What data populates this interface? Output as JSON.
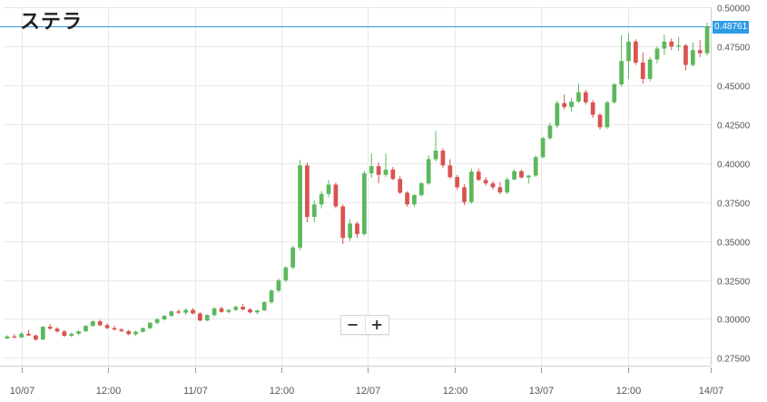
{
  "title": "ステラ",
  "zoom": {
    "minus_label": "−",
    "plus_label": "+"
  },
  "last_price_label": "0.48761",
  "colors": {
    "up": "#5cb85c",
    "down": "#d9534f",
    "grid": "#e8e8e8",
    "axis_text": "#555555",
    "price_line": "#2e9be5"
  },
  "chart_data": {
    "type": "candlestick",
    "title": "ステラ",
    "ylim": [
      0.27,
      0.5
    ],
    "yticks": [
      "0.27500",
      "0.30000",
      "0.32500",
      "0.35000",
      "0.37500",
      "0.40000",
      "0.42500",
      "0.45000",
      "0.47500",
      "0.50000"
    ],
    "ytick_values": [
      0.275,
      0.3,
      0.325,
      0.35,
      0.375,
      0.4,
      0.425,
      0.45,
      0.475,
      0.5
    ],
    "xlim": [
      0,
      98
    ],
    "xticks": [
      {
        "label": "10/07",
        "pos": 2.5
      },
      {
        "label": "12:00",
        "pos": 14.5
      },
      {
        "label": "11/07",
        "pos": 26.5
      },
      {
        "label": "12:00",
        "pos": 38.5
      },
      {
        "label": "12/07",
        "pos": 50.5
      },
      {
        "label": "12:00",
        "pos": 62.5
      },
      {
        "label": "13/07",
        "pos": 74.5
      },
      {
        "label": "12:00",
        "pos": 86.5
      },
      {
        "label": "14/07",
        "pos": 98
      }
    ],
    "last_price": 0.48761,
    "grid": true,
    "candles": [
      [
        0.2875,
        0.2895,
        0.287,
        0.2888
      ],
      [
        0.2888,
        0.2902,
        0.2875,
        0.2881
      ],
      [
        0.2881,
        0.2915,
        0.2877,
        0.2905
      ],
      [
        0.2905,
        0.293,
        0.289,
        0.2894
      ],
      [
        0.2894,
        0.29,
        0.286,
        0.2868
      ],
      [
        0.2868,
        0.2955,
        0.2865,
        0.295
      ],
      [
        0.295,
        0.2968,
        0.293,
        0.2938
      ],
      [
        0.2938,
        0.2948,
        0.2912,
        0.292
      ],
      [
        0.292,
        0.293,
        0.2885,
        0.2892
      ],
      [
        0.2892,
        0.2912,
        0.2883,
        0.2905
      ],
      [
        0.2905,
        0.2928,
        0.2895,
        0.2921
      ],
      [
        0.2921,
        0.2962,
        0.2915,
        0.2955
      ],
      [
        0.2955,
        0.299,
        0.295,
        0.2985
      ],
      [
        0.2985,
        0.2995,
        0.2952,
        0.296
      ],
      [
        0.296,
        0.2972,
        0.2935,
        0.2941
      ],
      [
        0.2941,
        0.2955,
        0.2925,
        0.2932
      ],
      [
        0.2932,
        0.2942,
        0.2915,
        0.2922
      ],
      [
        0.2922,
        0.293,
        0.2895,
        0.2902
      ],
      [
        0.2902,
        0.2925,
        0.289,
        0.2918
      ],
      [
        0.2918,
        0.2945,
        0.2912,
        0.2941
      ],
      [
        0.2941,
        0.298,
        0.2935,
        0.2975
      ],
      [
        0.2975,
        0.3005,
        0.2965,
        0.2998
      ],
      [
        0.2998,
        0.3025,
        0.299,
        0.302
      ],
      [
        0.302,
        0.3055,
        0.3012,
        0.3048
      ],
      [
        0.3048,
        0.3062,
        0.303,
        0.304
      ],
      [
        0.304,
        0.3068,
        0.3025,
        0.3058
      ],
      [
        0.3058,
        0.307,
        0.303,
        0.3035
      ],
      [
        0.3035,
        0.3045,
        0.2985,
        0.299
      ],
      [
        0.299,
        0.303,
        0.2985,
        0.3025
      ],
      [
        0.3025,
        0.3075,
        0.3015,
        0.3068
      ],
      [
        0.3068,
        0.308,
        0.304,
        0.3045
      ],
      [
        0.3045,
        0.3062,
        0.3035,
        0.3058
      ],
      [
        0.3058,
        0.3085,
        0.305,
        0.3078
      ],
      [
        0.3078,
        0.3095,
        0.3055,
        0.3061
      ],
      [
        0.3061,
        0.307,
        0.3035,
        0.3042
      ],
      [
        0.3042,
        0.306,
        0.303,
        0.3055
      ],
      [
        0.3055,
        0.3115,
        0.305,
        0.3108
      ],
      [
        0.3108,
        0.319,
        0.3098,
        0.3182
      ],
      [
        0.3182,
        0.326,
        0.317,
        0.3248
      ],
      [
        0.3248,
        0.334,
        0.3235,
        0.333
      ],
      [
        0.333,
        0.347,
        0.332,
        0.3458
      ],
      [
        0.3458,
        0.402,
        0.344,
        0.3985
      ],
      [
        0.3985,
        0.4005,
        0.362,
        0.3655
      ],
      [
        0.3655,
        0.376,
        0.362,
        0.3735
      ],
      [
        0.3735,
        0.382,
        0.371,
        0.3802
      ],
      [
        0.3802,
        0.389,
        0.378,
        0.3862
      ],
      [
        0.3862,
        0.3875,
        0.371,
        0.3722
      ],
      [
        0.3722,
        0.3735,
        0.348,
        0.352
      ],
      [
        0.352,
        0.364,
        0.35,
        0.3612
      ],
      [
        0.3612,
        0.3625,
        0.352,
        0.3545
      ],
      [
        0.3545,
        0.395,
        0.3535,
        0.3935
      ],
      [
        0.3935,
        0.406,
        0.3905,
        0.398
      ],
      [
        0.398,
        0.4005,
        0.387,
        0.3925
      ],
      [
        0.3925,
        0.406,
        0.391,
        0.3958
      ],
      [
        0.3958,
        0.3975,
        0.389,
        0.3898
      ],
      [
        0.3898,
        0.3915,
        0.38,
        0.381
      ],
      [
        0.381,
        0.382,
        0.372,
        0.3735
      ],
      [
        0.3735,
        0.38,
        0.372,
        0.3795
      ],
      [
        0.3795,
        0.388,
        0.3785,
        0.387
      ],
      [
        0.387,
        0.405,
        0.386,
        0.4025
      ],
      [
        0.4025,
        0.4205,
        0.401,
        0.408
      ],
      [
        0.408,
        0.4095,
        0.397,
        0.3985
      ],
      [
        0.3985,
        0.4025,
        0.39,
        0.391
      ],
      [
        0.391,
        0.3925,
        0.383,
        0.3845
      ],
      [
        0.3845,
        0.3865,
        0.373,
        0.375
      ],
      [
        0.375,
        0.3965,
        0.374,
        0.3945
      ],
      [
        0.3945,
        0.3965,
        0.3885,
        0.3892
      ],
      [
        0.3892,
        0.391,
        0.3855,
        0.387
      ],
      [
        0.387,
        0.3885,
        0.383,
        0.3845
      ],
      [
        0.3845,
        0.388,
        0.38,
        0.3812
      ],
      [
        0.3812,
        0.391,
        0.38,
        0.3895
      ],
      [
        0.3895,
        0.396,
        0.389,
        0.3948
      ],
      [
        0.3948,
        0.3958,
        0.39,
        0.3908
      ],
      [
        0.3908,
        0.3925,
        0.387,
        0.392
      ],
      [
        0.392,
        0.405,
        0.391,
        0.4038
      ],
      [
        0.4038,
        0.417,
        0.403,
        0.416
      ],
      [
        0.416,
        0.426,
        0.415,
        0.424
      ],
      [
        0.424,
        0.44,
        0.4225,
        0.4385
      ],
      [
        0.4385,
        0.444,
        0.4345,
        0.436
      ],
      [
        0.436,
        0.442,
        0.433,
        0.4395
      ],
      [
        0.4395,
        0.451,
        0.4385,
        0.4455
      ],
      [
        0.4455,
        0.447,
        0.4375,
        0.439
      ],
      [
        0.439,
        0.4405,
        0.429,
        0.431
      ],
      [
        0.431,
        0.432,
        0.4215,
        0.423
      ],
      [
        0.423,
        0.44,
        0.422,
        0.439
      ],
      [
        0.439,
        0.4515,
        0.438,
        0.4505
      ],
      [
        0.4505,
        0.482,
        0.449,
        0.4655
      ],
      [
        0.4655,
        0.483,
        0.454,
        0.478
      ],
      [
        0.478,
        0.4795,
        0.463,
        0.4645
      ],
      [
        0.4645,
        0.471,
        0.451,
        0.454
      ],
      [
        0.454,
        0.468,
        0.4525,
        0.4665
      ],
      [
        0.4665,
        0.475,
        0.464,
        0.4735
      ],
      [
        0.4735,
        0.4825,
        0.4695,
        0.478
      ],
      [
        0.478,
        0.48,
        0.4725,
        0.4748
      ],
      [
        0.4748,
        0.481,
        0.472,
        0.4755
      ],
      [
        0.4755,
        0.4765,
        0.4595,
        0.463
      ],
      [
        0.463,
        0.4775,
        0.462,
        0.4725
      ],
      [
        0.4725,
        0.479,
        0.468,
        0.4705
      ],
      [
        0.4705,
        0.49,
        0.469,
        0.4876
      ]
    ]
  }
}
